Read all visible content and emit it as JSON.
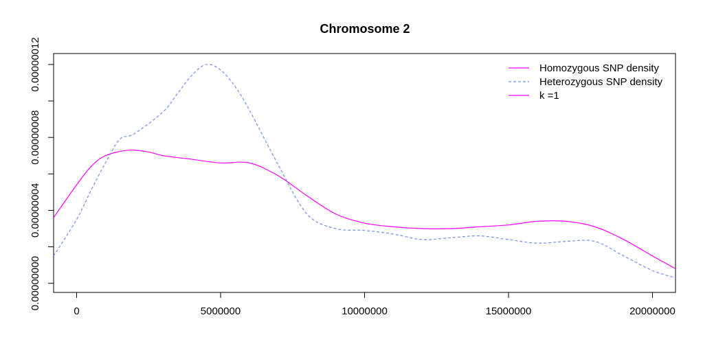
{
  "chart_data": {
    "type": "line",
    "title": "Chromosome 2",
    "xlabel": "",
    "ylabel": "",
    "xlim": [
      -800000,
      20800000
    ],
    "ylim": [
      -5e-09,
      1.26e-07
    ],
    "x_ticks": [
      {
        "value": 0,
        "label": "0"
      },
      {
        "value": 5000000,
        "label": "5000000"
      },
      {
        "value": 10000000,
        "label": "10000000"
      },
      {
        "value": 15000000,
        "label": "15000000"
      },
      {
        "value": 20000000,
        "label": "20000000"
      }
    ],
    "y_ticks": [
      {
        "value": 0,
        "label": "0.00000000"
      },
      {
        "value": 2e-08,
        "label": ""
      },
      {
        "value": 4e-08,
        "label": "0.00000004"
      },
      {
        "value": 6e-08,
        "label": ""
      },
      {
        "value": 8e-08,
        "label": "0.00000008"
      },
      {
        "value": 1e-07,
        "label": ""
      },
      {
        "value": 1.2e-07,
        "label": "0.00000012"
      }
    ],
    "legend_position": "top-right",
    "legend": [
      {
        "label": "Homozygous SNP density",
        "color": "#ff00ff",
        "style": "solid"
      },
      {
        "label": "Heterozygous SNP density",
        "color": "#6f8fe8",
        "style": "dashed"
      },
      {
        "label": "k =1",
        "color": "#ff00ff",
        "style": "solid"
      }
    ],
    "series": [
      {
        "color": "#ff00ff",
        "style": "solid",
        "points": [
          [
            -800000,
            3.6e-08
          ],
          [
            0,
            5.4e-08
          ],
          [
            500000,
            6.4e-08
          ],
          [
            1000000,
            7e-08
          ],
          [
            1800000,
            7.3e-08
          ],
          [
            2500000,
            7.2e-08
          ],
          [
            3000000,
            7e-08
          ],
          [
            4000000,
            6.8e-08
          ],
          [
            5000000,
            6.6e-08
          ],
          [
            6000000,
            6.6e-08
          ],
          [
            7000000,
            5.9e-08
          ],
          [
            8000000,
            4.8e-08
          ],
          [
            9000000,
            3.8e-08
          ],
          [
            10000000,
            3.3e-08
          ],
          [
            11000000,
            3.1e-08
          ],
          [
            12000000,
            3e-08
          ],
          [
            13000000,
            3e-08
          ],
          [
            14000000,
            3.1e-08
          ],
          [
            15000000,
            3.2e-08
          ],
          [
            16000000,
            3.4e-08
          ],
          [
            17000000,
            3.4e-08
          ],
          [
            18000000,
            3.1e-08
          ],
          [
            19000000,
            2.4e-08
          ],
          [
            20000000,
            1.5e-08
          ],
          [
            20800000,
            8e-09
          ]
        ]
      },
      {
        "color": "#6f8fe8",
        "style": "dashed",
        "points": [
          [
            -800000,
            1.5e-08
          ],
          [
            0,
            3.5e-08
          ],
          [
            500000,
            5.1e-08
          ],
          [
            1000000,
            6.6e-08
          ],
          [
            1500000,
            7.9e-08
          ],
          [
            2000000,
            8.2e-08
          ],
          [
            3000000,
            9.4e-08
          ],
          [
            3500000,
            1.04e-07
          ],
          [
            4000000,
            1.14e-07
          ],
          [
            4500000,
            1.2e-07
          ],
          [
            5000000,
            1.17e-07
          ],
          [
            5500000,
            1.08e-07
          ],
          [
            6000000,
            9.5e-08
          ],
          [
            7000000,
            6.5e-08
          ],
          [
            8000000,
            3.8e-08
          ],
          [
            9000000,
            3e-08
          ],
          [
            10000000,
            2.9e-08
          ],
          [
            11000000,
            2.7e-08
          ],
          [
            12000000,
            2.4e-08
          ],
          [
            13000000,
            2.5e-08
          ],
          [
            14000000,
            2.6e-08
          ],
          [
            15000000,
            2.4e-08
          ],
          [
            16000000,
            2.2e-08
          ],
          [
            17000000,
            2.3e-08
          ],
          [
            18000000,
            2.3e-08
          ],
          [
            19000000,
            1.5e-08
          ],
          [
            20000000,
            7e-09
          ],
          [
            20800000,
            3e-09
          ]
        ]
      }
    ]
  }
}
